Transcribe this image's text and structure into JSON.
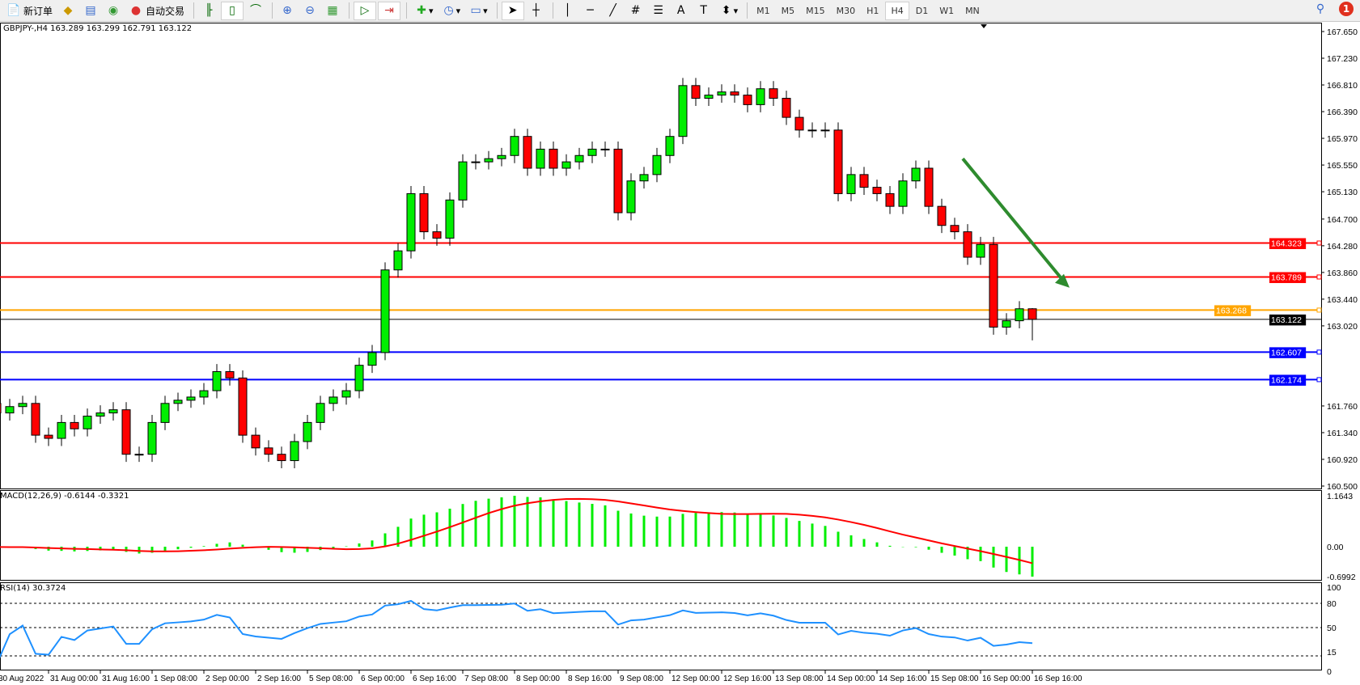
{
  "toolbar": {
    "new_order": "新订单",
    "auto_trading": "自动交易",
    "timeframes": [
      "M1",
      "M5",
      "M15",
      "M30",
      "H1",
      "H4",
      "D1",
      "W1",
      "MN"
    ],
    "active_timeframe": "H4",
    "notifications_count": "1",
    "icons": [
      "new-order-icon",
      "market-watch-icon",
      "navigator-icon",
      "signals-icon",
      "auto-trading-icon",
      "bar-chart-icon",
      "candlestick-icon",
      "line-chart-icon",
      "zoom-in-icon",
      "zoom-out-icon",
      "tile-windows-icon",
      "auto-scroll-icon",
      "chart-shift-icon",
      "indicators-icon",
      "periods-icon",
      "templates-icon",
      "cursor-icon",
      "crosshair-icon",
      "vertical-line-icon",
      "horizontal-line-icon",
      "trendline-icon",
      "equidistant-channel-icon",
      "fibonacci-icon",
      "text-icon",
      "text-label-icon",
      "arrows-icon"
    ]
  },
  "chart_data": {
    "type": "candlestick",
    "symbol_header": "GBPJPY-,H4  163.289 163.299 162.791 163.122",
    "last_bar": {
      "open": 163.289,
      "high": 163.299,
      "low": 162.791,
      "close": 163.122
    },
    "closes": [
      161.8,
      161.65,
      161.75,
      161.8,
      161.3,
      161.25,
      161.5,
      161.4,
      161.6,
      161.65,
      161.7,
      161.0,
      161.0,
      161.5,
      161.8,
      161.85,
      161.9,
      162.0,
      162.3,
      162.2,
      161.3,
      161.1,
      161.0,
      160.9,
      161.2,
      161.5,
      161.8,
      161.9,
      162.0,
      162.4,
      162.6,
      163.9,
      164.2,
      165.1,
      164.5,
      164.4,
      165.0,
      165.6,
      165.6,
      165.65,
      165.7,
      166.0,
      165.5,
      165.8,
      165.5,
      165.6,
      165.7,
      165.8,
      165.8,
      164.8,
      165.3,
      165.4,
      165.7,
      166.0,
      166.8,
      166.6,
      166.65,
      166.7,
      166.65,
      166.5,
      166.75,
      166.6,
      166.3,
      166.1,
      166.1,
      166.1,
      165.1,
      165.4,
      165.2,
      165.1,
      164.9,
      165.3,
      165.5,
      164.9,
      164.6,
      164.5,
      164.1,
      164.3,
      163.0,
      163.1,
      163.289,
      163.122
    ],
    "price_axis": [
      "167.650",
      "167.230",
      "166.810",
      "166.390",
      "165.970",
      "165.550",
      "165.130",
      "164.700",
      "164.280",
      "163.860",
      "163.440",
      "163.020",
      "161.760",
      "161.340",
      "160.920",
      "160.500"
    ],
    "ylim": [
      160.5,
      167.65
    ],
    "levels": [
      {
        "price": "164.323",
        "color": "#ff0000"
      },
      {
        "price": "163.789",
        "color": "#ff0000"
      },
      {
        "price": "163.268",
        "color": "#ffa500"
      },
      {
        "price": "163.122",
        "color": "#000000"
      },
      {
        "price": "162.607",
        "color": "#0000ff"
      },
      {
        "price": "162.174",
        "color": "#0000ff"
      }
    ],
    "trend_arrow": {
      "color": "#2e8b2e",
      "direction": "down",
      "from_price": 165.65,
      "to_price": 163.62
    },
    "time_axis": [
      "30 Aug 2022",
      "31 Aug 00:00",
      "31 Aug 16:00",
      "1 Sep 08:00",
      "2 Sep 00:00",
      "2 Sep 16:00",
      "5 Sep 08:00",
      "6 Sep 00:00",
      "6 Sep 16:00",
      "7 Sep 08:00",
      "8 Sep 00:00",
      "8 Sep 16:00",
      "9 Sep 08:00",
      "12 Sep 00:00",
      "12 Sep 16:00",
      "13 Sep 08:00",
      "14 Sep 00:00",
      "14 Sep 16:00",
      "15 Sep 08:00",
      "16 Sep 00:00",
      "16 Sep 16:00"
    ],
    "bull_color": "#00ee00",
    "bear_color": "#ff0000",
    "macd": {
      "label": "MACD(12,26,9) -0.6144 -0.3321",
      "axis": [
        "1.1643",
        "0.00",
        "-0.6992"
      ],
      "ylim": [
        -0.6992,
        1.1643
      ],
      "hist_color": "#00ee00",
      "signal_color": "#ff0000"
    },
    "rsi": {
      "label": "RSI(14) 30.3724",
      "axis": [
        "100",
        "80",
        "50",
        "15",
        "0"
      ],
      "levels": [
        80,
        50,
        15
      ],
      "color": "#1e90ff"
    }
  }
}
